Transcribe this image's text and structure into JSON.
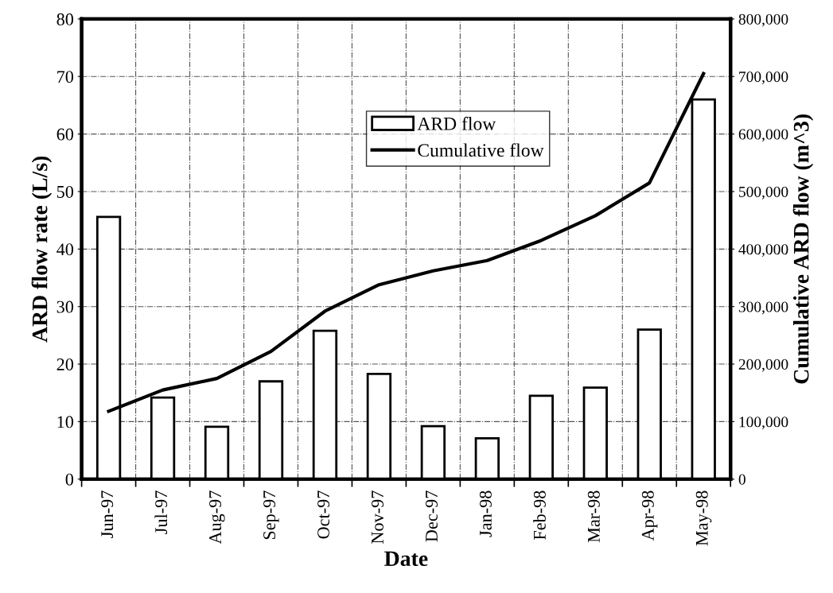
{
  "chart_data": {
    "type": "bar",
    "xlabel": "Date",
    "ylabel": "ARD flow rate (L/s)",
    "y2label": "Cumulative ARD flow (m^3)",
    "categories": [
      "Jun-97",
      "Jul-97",
      "Aug-97",
      "Sep-97",
      "Oct-97",
      "Nov-97",
      "Dec-97",
      "Jan-98",
      "Feb-98",
      "Mar-98",
      "Apr-98",
      "May-98"
    ],
    "series": [
      {
        "name": "ARD flow",
        "color": "#ffffff",
        "values": [
          45.6,
          14.2,
          9.1,
          17.0,
          25.8,
          18.3,
          9.2,
          7.1,
          14.5,
          15.9,
          26.0,
          66.0
        ]
      },
      {
        "name": "Cumulative flow",
        "type": "line",
        "axis": "y2",
        "color": "#000000",
        "values": [
          118000,
          155000,
          175000,
          222000,
          292000,
          338000,
          362000,
          380000,
          415000,
          458000,
          515000,
          705000
        ]
      }
    ],
    "ylim": [
      0,
      80
    ],
    "yticks": [
      0,
      10,
      20,
      30,
      40,
      50,
      60,
      70,
      80
    ],
    "y2lim": [
      0,
      800000
    ],
    "y2ticks": [
      {
        "value": 0,
        "label": "0"
      },
      {
        "value": 100000,
        "label": "100,000"
      },
      {
        "value": 200000,
        "label": "200,000"
      },
      {
        "value": 300000,
        "label": "300,000"
      },
      {
        "value": 400000,
        "label": "400,000"
      },
      {
        "value": 500000,
        "label": "500,000"
      },
      {
        "value": 600000,
        "label": "600,000"
      },
      {
        "value": 700000,
        "label": "700,000"
      },
      {
        "value": 800000,
        "label": "800,000"
      }
    ],
    "grid": true,
    "legend": "top",
    "marker": "none",
    "line_style": "solid"
  }
}
